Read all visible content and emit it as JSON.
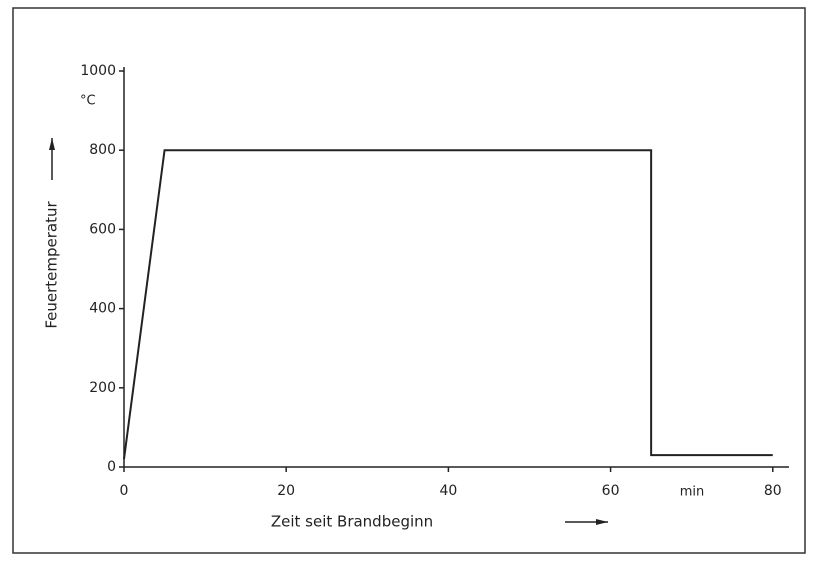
{
  "chart_data": {
    "type": "line",
    "xlabel": "Zeit seit Brandbeginn",
    "ylabel": "Feuertemperatur",
    "x_unit": "min",
    "y_unit": "°C",
    "series": [
      {
        "name": null,
        "color": "#222222",
        "x": [
          0,
          5,
          65,
          65,
          80
        ],
        "values": [
          20,
          800,
          800,
          30,
          30
        ]
      }
    ],
    "xlim": [
      0,
      82
    ],
    "xticks": [
      0,
      20,
      40,
      60,
      80
    ],
    "ylim": [
      0,
      1000
    ],
    "yticks": [
      0,
      200,
      400,
      600,
      800,
      1000
    ],
    "grid": false
  }
}
